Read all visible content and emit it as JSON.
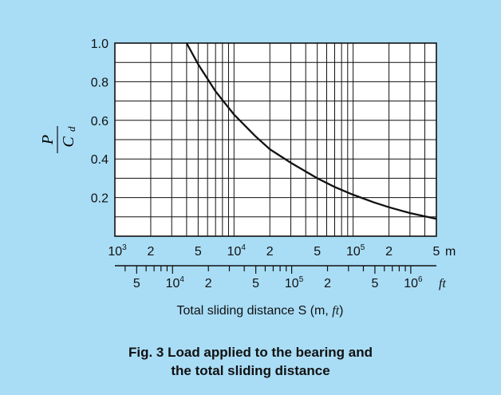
{
  "chart_data": {
    "type": "line",
    "x_scale": "log",
    "y_range": [
      0.0,
      1.0
    ],
    "x_range_m": [
      1000,
      500000
    ],
    "grid": true,
    "y_ticks": [
      "1.0",
      "0.8",
      "0.6",
      "0.4",
      "0.2"
    ],
    "ylabel_num": "P",
    "ylabel_den": "C",
    "ylabel_den_sub": "d",
    "x_axis_m": {
      "ticks": [
        {
          "x": 1000,
          "mantissa": "10",
          "exp": "3"
        },
        {
          "x": 2000,
          "label": "2"
        },
        {
          "x": 5000,
          "label": "5"
        },
        {
          "x": 10000,
          "mantissa": "10",
          "exp": "4"
        },
        {
          "x": 20000,
          "label": "2"
        },
        {
          "x": 50000,
          "label": "5"
        },
        {
          "x": 100000,
          "mantissa": "10",
          "exp": "5"
        },
        {
          "x": 200000,
          "label": "2"
        },
        {
          "x": 500000,
          "label": "5"
        }
      ],
      "unit": "m"
    },
    "x_axis_ft": {
      "ticks": [
        {
          "x": 5000,
          "label": "5"
        },
        {
          "x": 10000,
          "mantissa": "10",
          "exp": "4"
        },
        {
          "x": 20000,
          "label": "2"
        },
        {
          "x": 50000,
          "label": "5"
        },
        {
          "x": 100000,
          "mantissa": "10",
          "exp": "5"
        },
        {
          "x": 200000,
          "label": "2"
        },
        {
          "x": 500000,
          "label": "5"
        },
        {
          "x": 1000000,
          "mantissa": "10",
          "exp": "6"
        }
      ],
      "unit": "ft"
    },
    "xlabel_prefix": "Total sliding distance S (m, ",
    "xlabel_unit": "ft",
    "xlabel_suffix": ")",
    "series": [
      {
        "x": [
          4000,
          5000,
          7000,
          10000,
          15000,
          20000,
          30000,
          50000,
          70000,
          100000,
          150000,
          200000,
          300000,
          500000
        ],
        "y": [
          1.0,
          0.89,
          0.75,
          0.63,
          0.52,
          0.45,
          0.38,
          0.3,
          0.255,
          0.215,
          0.175,
          0.15,
          0.12,
          0.09
        ]
      }
    ],
    "line_color": "#111111"
  },
  "caption": {
    "line1": "Fig. 3  Load applied to the bearing and",
    "line2": "the total sliding distance"
  }
}
